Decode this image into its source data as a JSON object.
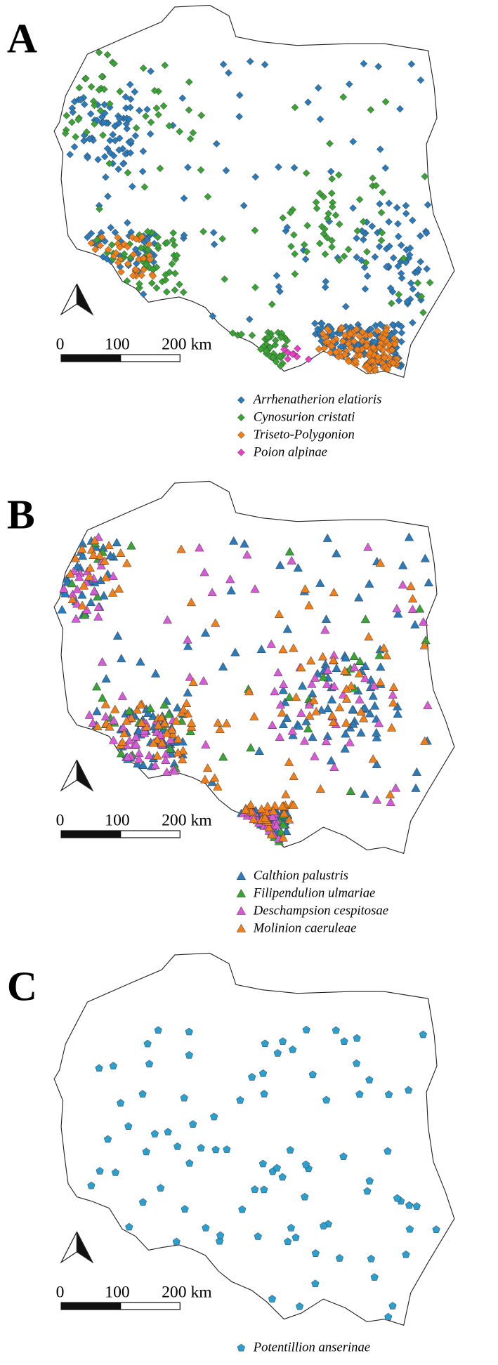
{
  "panels": [
    {
      "label": "A",
      "scale": [
        "0",
        "100",
        "200 km"
      ],
      "marker": "diamond",
      "legend": [
        {
          "name": "Arrhenatherion elatioris",
          "color": "#2b7bba"
        },
        {
          "name": "Cynosurion cristati",
          "color": "#3aa335"
        },
        {
          "name": "Triseto-Polygonion",
          "color": "#f07f1a"
        },
        {
          "name": "Poion alpinae",
          "color": "#e83fc7"
        }
      ]
    },
    {
      "label": "B",
      "scale": [
        "0",
        "100",
        "200 km"
      ],
      "marker": "triangle",
      "legend": [
        {
          "name": "Calthion palustris",
          "color": "#2b7bba"
        },
        {
          "name": "Filipendulion ulmariae",
          "color": "#3aa335"
        },
        {
          "name": "Deschampsion cespitosae",
          "color": "#d95ad6"
        },
        {
          "name": "Molinion caeruleae",
          "color": "#f07f1a"
        }
      ]
    },
    {
      "label": "C",
      "scale": [
        "0",
        "100",
        "200 km"
      ],
      "marker": "pentagon",
      "legend": [
        {
          "name": "Potentillion anserinae",
          "color": "#2a9fd0"
        }
      ]
    }
  ]
}
